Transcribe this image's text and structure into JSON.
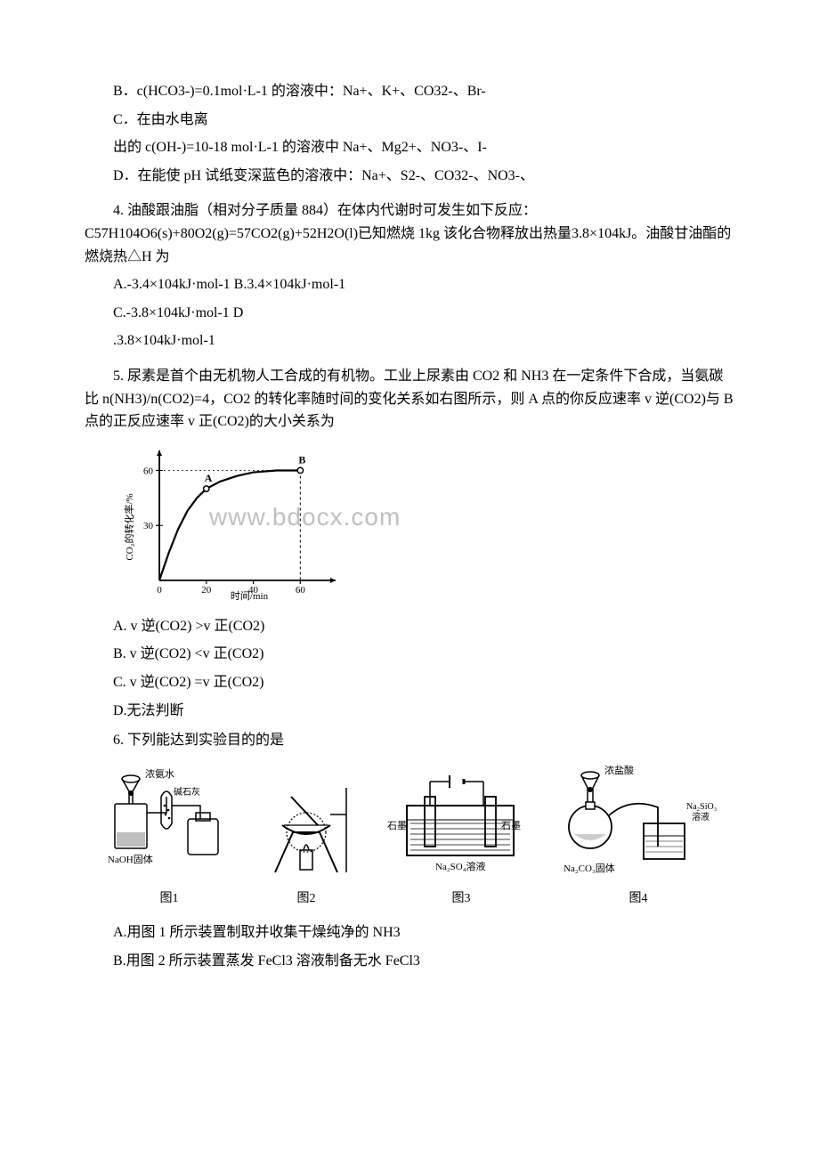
{
  "q3": {
    "optB": "B．c(HCO3-)=0.1mol·L-1 的溶液中：Na+、K+、CO32-、Br-",
    "optC": "C．在由水电离",
    "optC2": "出的 c(OH-)=10-18 mol·L-1 的溶液中 Na+、Mg2+、NO3-、I-",
    "optD": "D．在能使 pH 试纸变深蓝色的溶液中：Na+、S2-、CO32-、NO3-、"
  },
  "q4": {
    "stem": "4. 油酸跟油脂（相对分子质量 884）在体内代谢时可发生如下反应：C57H104O6(s)+80O2(g)=57CO2(g)+52H2O(l)已知燃烧 1kg 该化合物释放出热量3.8×104kJ。油酸甘油酯的燃烧热△H 为",
    "optAB": "A.-3.4×104kJ·mol-1 B.3.4×104kJ·mol-1",
    "optC": "C.-3.8×104kJ·mol-1 D",
    "optD": ".3.8×104kJ·mol-1"
  },
  "q5": {
    "stem": "5. 尿素是首个由无机物人工合成的有机物。工业上尿素由 CO2 和 NH3 在一定条件下合成，当氨碳比 n(NH3)/n(CO2)=4，CO2 的转化率随时间的变化关系如右图所示，则 A 点的你反应速率 v 逆(CO2)与 B 点的正反应速率 v 正(CO2)的大小关系为",
    "optA": "A. v 逆(CO2) >v 正(CO2)",
    "optB": "B. v 逆(CO2) <v 正(CO2)",
    "optC": "C. v 逆(CO2) =v 正(CO2)",
    "optD": "D.无法判断"
  },
  "q6": {
    "stem": "6. 下列能达到实验目的的是",
    "captions": {
      "c1": "图1",
      "c2": "图2",
      "c3": "图3",
      "c4": "图4"
    },
    "labels": {
      "naoh": "NaOH固体",
      "ammonia": "浓氨水",
      "lime": "碱石灰",
      "graphite": "石墨",
      "na2so4": "Na₂SO₄溶液",
      "hcl": "浓盐酸",
      "na2co3": "Na₂CO₃固体",
      "na2sio3": "Na₂SiO₃\n溶液"
    },
    "optA": "A.用图 1 所示装置制取并收集干燥纯净的 NH3",
    "optB": "B.用图 2 所示装置蒸发 FeCl3 溶液制备无水 FeCl3"
  },
  "chart": {
    "type": "line",
    "xlabel": "时间/min",
    "ylabel": "CO₂的转化率/%",
    "pointA": "A",
    "pointB": "B",
    "x_ticks": [
      0,
      20,
      40,
      60
    ],
    "y_ticks": [
      0,
      30,
      60
    ],
    "xlim": [
      0,
      72
    ],
    "ylim": [
      0,
      68
    ],
    "curve": [
      [
        0,
        0
      ],
      [
        4,
        15
      ],
      [
        8,
        28
      ],
      [
        12,
        38
      ],
      [
        16,
        45
      ],
      [
        20,
        50
      ],
      [
        26,
        54
      ],
      [
        33,
        57
      ],
      [
        40,
        59
      ],
      [
        50,
        60
      ],
      [
        60,
        60
      ]
    ],
    "A": [
      20,
      50
    ],
    "B": [
      60,
      60
    ],
    "colors": {
      "axis": "#000000",
      "curve": "#000000",
      "background": "#ffffff",
      "grid": "#ffffff",
      "text": "#000000"
    },
    "line_width": 2.2,
    "font_size": 11,
    "watermark_text": "www.bdocx.com",
    "watermark_color": "rgba(140,140,140,0.55)",
    "watermark_fontsize": 28
  }
}
